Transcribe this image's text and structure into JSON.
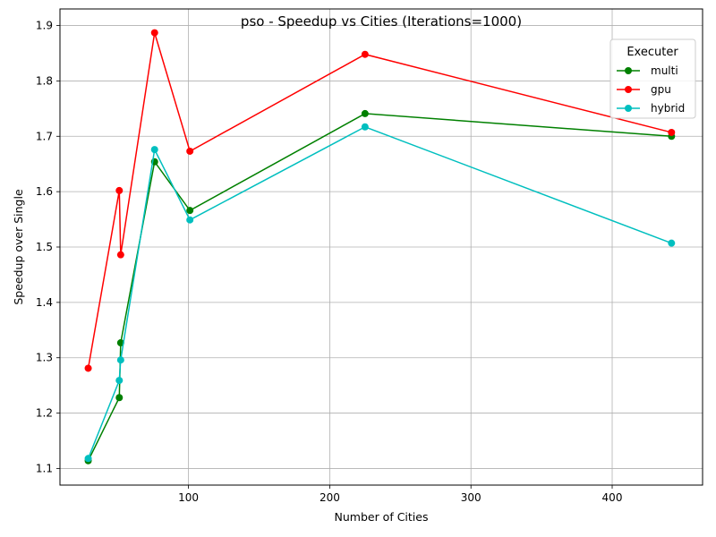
{
  "chart_data": {
    "type": "line",
    "title": "pso - Speedup vs Cities (Iterations=1000)",
    "xlabel": "Number of Cities",
    "ylabel": "Speedup over Single",
    "xlim": [
      9,
      464
    ],
    "ylim": [
      1.07,
      1.93
    ],
    "xticks": [
      100,
      200,
      300,
      400
    ],
    "yticks": [
      1.1,
      1.2,
      1.3,
      1.4,
      1.5,
      1.6,
      1.7,
      1.8,
      1.9
    ],
    "grid": true,
    "legend": {
      "title": "Executer",
      "position": "top-right"
    },
    "series": [
      {
        "name": "multi",
        "color": "#008000",
        "x": [
          29,
          51,
          52,
          76,
          101,
          225,
          442
        ],
        "y": [
          1.114,
          1.228,
          1.327,
          1.654,
          1.566,
          1.741,
          1.7
        ]
      },
      {
        "name": "gpu",
        "color": "#ff0000",
        "x": [
          29,
          51,
          52,
          76,
          101,
          225,
          442
        ],
        "y": [
          1.281,
          1.602,
          1.486,
          1.887,
          1.673,
          1.848,
          1.707
        ]
      },
      {
        "name": "hybrid",
        "color": "#00bfbf",
        "x": [
          29,
          51,
          52,
          76,
          101,
          225,
          442
        ],
        "y": [
          1.118,
          1.259,
          1.296,
          1.676,
          1.549,
          1.717,
          1.507
        ]
      }
    ]
  }
}
